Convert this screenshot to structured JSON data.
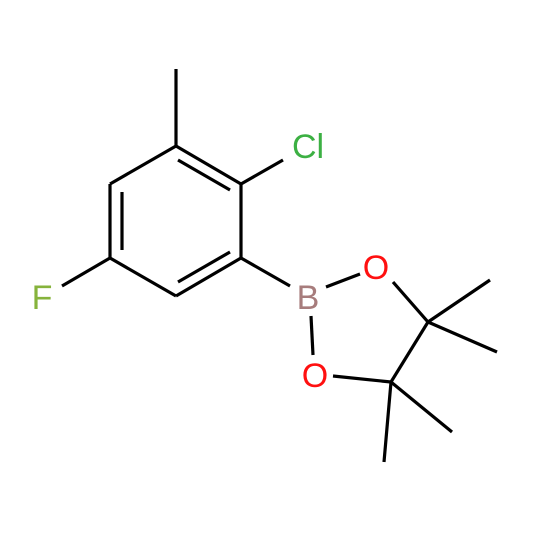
{
  "atoms": [
    {
      "label": "Cl"
    },
    {
      "label": "F"
    },
    {
      "label": "B"
    },
    {
      "label": "O"
    },
    {
      "label": "O"
    }
  ]
}
